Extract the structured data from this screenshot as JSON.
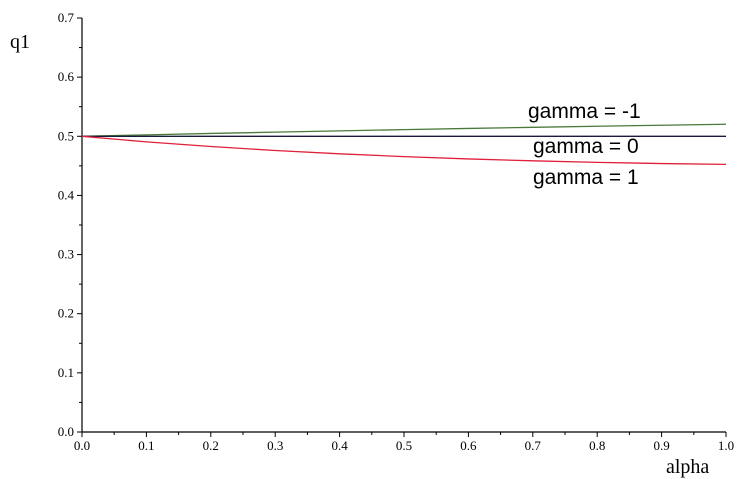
{
  "chart_data": {
    "type": "line",
    "xlabel": "alpha",
    "ylabel": "q1",
    "xlim": [
      0.0,
      1.0
    ],
    "ylim": [
      0.0,
      0.7
    ],
    "x_ticks": [
      "0.0",
      "0.1",
      "0.2",
      "0.3",
      "0.4",
      "0.5",
      "0.6",
      "0.7",
      "0.8",
      "0.9",
      "1.0"
    ],
    "y_ticks": [
      "0.0",
      "0.1",
      "0.2",
      "0.3",
      "0.4",
      "0.5",
      "0.6",
      "0.7"
    ],
    "grid": false,
    "legend": "none",
    "series": [
      {
        "name": "gamma = -1",
        "color": "#4a7a3a",
        "x": [
          0.0,
          0.1,
          0.2,
          0.3,
          0.4,
          0.5,
          0.6,
          0.7,
          0.8,
          0.9,
          1.0
        ],
        "y": [
          0.5,
          0.5024,
          0.5048,
          0.507,
          0.5092,
          0.5113,
          0.5133,
          0.5152,
          0.517,
          0.5187,
          0.5203
        ]
      },
      {
        "name": "gamma = 0",
        "color": "#1a1a3a",
        "x": [
          0.0,
          0.1,
          0.2,
          0.3,
          0.4,
          0.5,
          0.6,
          0.7,
          0.8,
          0.9,
          1.0
        ],
        "y": [
          0.5,
          0.5,
          0.5,
          0.5,
          0.5,
          0.5,
          0.5,
          0.5,
          0.5,
          0.5,
          0.5
        ]
      },
      {
        "name": "gamma = 1",
        "color": "#e0203a",
        "x": [
          0.0,
          0.1,
          0.2,
          0.3,
          0.4,
          0.5,
          0.6,
          0.7,
          0.8,
          0.9,
          1.0
        ],
        "y": [
          0.5,
          0.4906,
          0.4827,
          0.476,
          0.4704,
          0.4656,
          0.4617,
          0.4585,
          0.4559,
          0.4539,
          0.4525
        ]
      }
    ]
  }
}
